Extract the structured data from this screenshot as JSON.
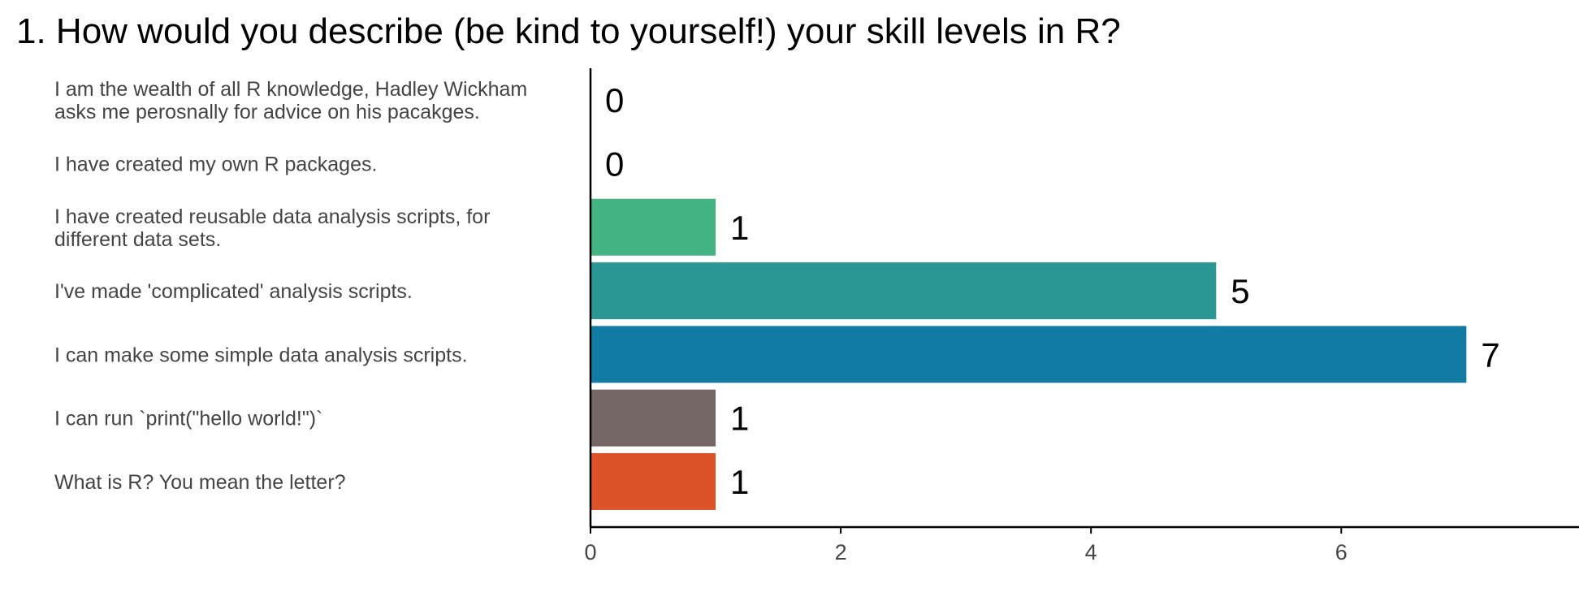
{
  "chart_data": {
    "type": "bar",
    "orientation": "horizontal",
    "title": "1. How would you describe (be kind to yourself!) your skill levels in R?",
    "xlabel": "",
    "ylabel": "",
    "xlim": [
      0,
      7.9
    ],
    "x_ticks": [
      0,
      2,
      4,
      6
    ],
    "grid": false,
    "legend": "none",
    "categories": [
      [
        "I am the wealth of all R knowledge, Hadley Wickham",
        "asks me perosnally for advice on his pacakges."
      ],
      [
        "I have created my own R packages."
      ],
      [
        "I have created reusable data analysis scripts, for",
        "different data sets."
      ],
      [
        "I've made 'complicated' analysis scripts."
      ],
      [
        "I can make some simple data analysis scripts."
      ],
      [
        "I can run `print(\"hello world!\")`"
      ],
      [
        "What is R? You mean the letter?"
      ]
    ],
    "values": [
      0,
      0,
      1,
      5,
      7,
      1,
      1
    ],
    "value_labels": [
      "0",
      "0",
      "1",
      "5",
      "7",
      "1",
      "1"
    ],
    "colors": [
      "#FDE725",
      "#9AD93C",
      "#44B482",
      "#2A9794",
      "#127BA4",
      "#756766",
      "#DC5229"
    ]
  }
}
